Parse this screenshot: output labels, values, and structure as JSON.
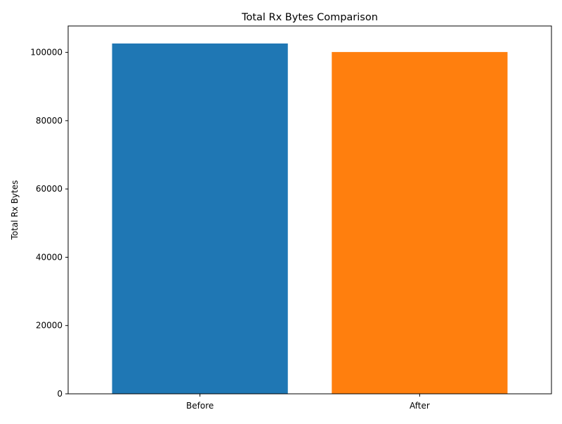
{
  "chart_data": {
    "type": "bar",
    "title": "Total Rx Bytes Comparison",
    "xlabel": "",
    "ylabel": "Total Rx Bytes",
    "categories": [
      "Before",
      "After"
    ],
    "values": [
      102600,
      100100
    ],
    "colors": [
      "#1f77b4",
      "#ff7f0e"
    ],
    "ylim": [
      0,
      107730
    ],
    "yticks": [
      0,
      20000,
      40000,
      60000,
      80000,
      100000
    ],
    "ytick_labels": [
      "0",
      "20000",
      "40000",
      "60000",
      "80000",
      "100000"
    ],
    "grid": false,
    "legend": "none"
  }
}
